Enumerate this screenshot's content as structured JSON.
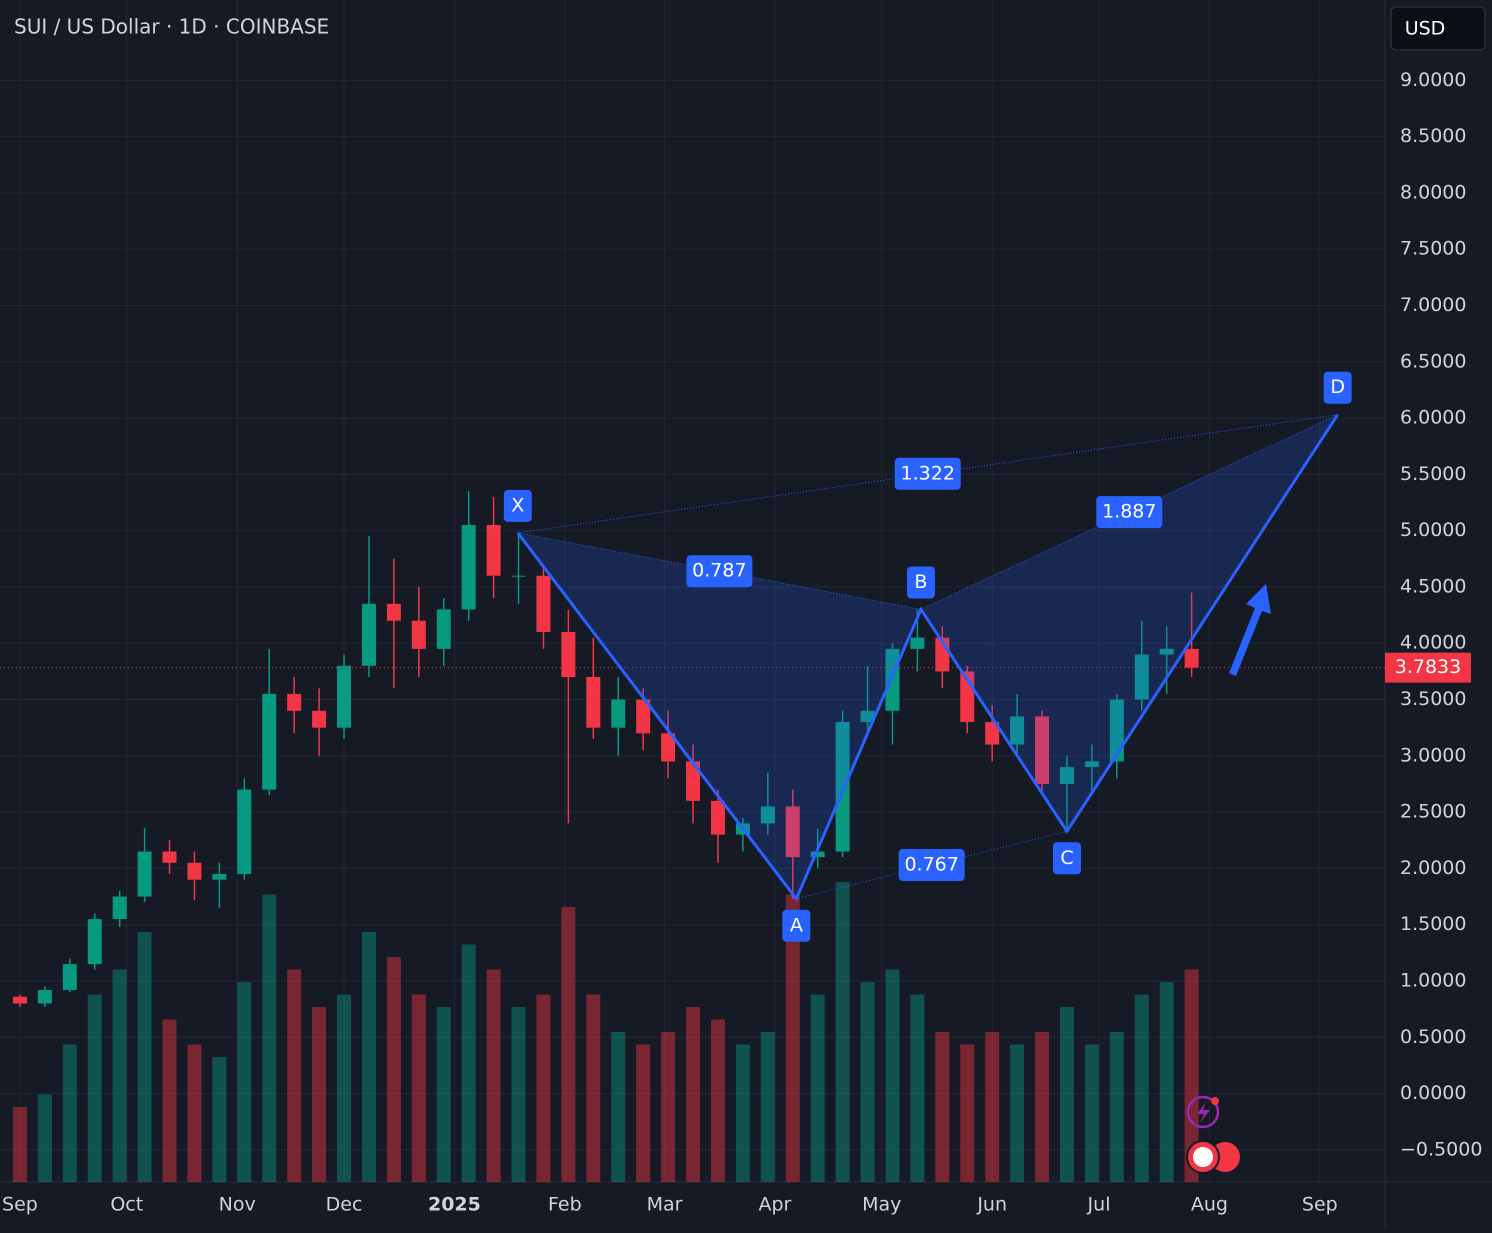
{
  "chart_data": {
    "type": "candlestick",
    "title": "SUI / US Dollar · 1D · COINBASE",
    "currency": "USD",
    "x": [
      0,
      7,
      14,
      21,
      28,
      35,
      42,
      49,
      56,
      63,
      70,
      77,
      84,
      91,
      98,
      105,
      112,
      119,
      126,
      133,
      140,
      147,
      154,
      161,
      168,
      175,
      182,
      189,
      196,
      203,
      210,
      217,
      224,
      231,
      238,
      245,
      252,
      259,
      266,
      273,
      280,
      287,
      294,
      301,
      308,
      315,
      322,
      329
    ],
    "open": [
      0.86,
      0.8,
      0.92,
      1.15,
      1.55,
      1.75,
      2.15,
      2.05,
      1.9,
      1.95,
      2.7,
      3.55,
      3.4,
      3.25,
      3.8,
      4.35,
      4.2,
      3.95,
      4.3,
      5.05,
      4.6,
      4.6,
      4.1,
      3.7,
      3.25,
      3.5,
      3.2,
      2.95,
      2.6,
      2.3,
      2.4,
      2.55,
      2.1,
      2.15,
      3.3,
      3.4,
      3.95,
      4.05,
      3.75,
      3.3,
      3.1,
      3.35,
      2.75,
      2.9,
      2.95,
      3.5,
      3.9,
      3.95
    ],
    "high": [
      0.88,
      0.95,
      1.2,
      1.6,
      1.8,
      2.36,
      2.25,
      2.15,
      2.05,
      2.8,
      3.95,
      3.7,
      3.6,
      3.9,
      4.95,
      4.75,
      4.5,
      4.4,
      5.35,
      5.3,
      4.98,
      4.7,
      4.3,
      4.05,
      3.7,
      3.6,
      3.4,
      3.1,
      2.7,
      2.45,
      2.85,
      2.7,
      2.35,
      3.4,
      3.8,
      4.0,
      4.3,
      4.15,
      3.8,
      3.45,
      3.55,
      3.4,
      3.0,
      3.1,
      3.55,
      4.2,
      4.15,
      4.45
    ],
    "low": [
      0.77,
      0.77,
      0.9,
      1.1,
      1.48,
      1.7,
      1.95,
      1.72,
      1.65,
      1.9,
      2.65,
      3.2,
      3.0,
      3.15,
      3.7,
      3.6,
      3.7,
      3.8,
      4.2,
      4.4,
      4.35,
      3.95,
      2.4,
      3.15,
      3.0,
      3.05,
      2.8,
      2.4,
      2.05,
      2.15,
      2.3,
      1.73,
      2.0,
      2.1,
      3.2,
      3.1,
      3.75,
      3.6,
      3.2,
      2.95,
      3.0,
      2.65,
      2.33,
      2.65,
      2.8,
      3.4,
      3.55,
      3.7
    ],
    "close": [
      0.8,
      0.92,
      1.15,
      1.55,
      1.75,
      2.15,
      2.05,
      1.9,
      1.95,
      2.7,
      3.55,
      3.4,
      3.25,
      3.8,
      4.35,
      4.2,
      3.95,
      4.3,
      5.05,
      4.6,
      4.6,
      4.1,
      3.7,
      3.25,
      3.5,
      3.2,
      2.95,
      2.6,
      2.3,
      2.4,
      2.55,
      2.1,
      2.15,
      3.3,
      3.4,
      3.95,
      4.05,
      3.75,
      3.3,
      3.1,
      3.35,
      2.75,
      2.9,
      2.95,
      3.5,
      3.9,
      3.95,
      3.7833
    ],
    "volume": [
      60,
      70,
      110,
      150,
      170,
      200,
      130,
      110,
      100,
      160,
      230,
      170,
      140,
      150,
      200,
      180,
      150,
      140,
      190,
      170,
      140,
      150,
      220,
      150,
      120,
      110,
      120,
      140,
      130,
      110,
      120,
      230,
      150,
      240,
      160,
      170,
      150,
      120,
      110,
      120,
      110,
      120,
      140,
      110,
      120,
      150,
      160,
      170
    ],
    "up_color": "#089981",
    "down_color": "#f23645",
    "xlim": [
      -5.6,
      383.3
    ],
    "xticks": [
      {
        "value": 0,
        "label": "Sep"
      },
      {
        "value": 30,
        "label": "Oct"
      },
      {
        "value": 61,
        "label": "Nov"
      },
      {
        "value": 91,
        "label": "Dec"
      },
      {
        "value": 122,
        "label": "2025"
      },
      {
        "value": 153,
        "label": "Feb"
      },
      {
        "value": 181,
        "label": "Mar"
      },
      {
        "value": 212,
        "label": "Apr"
      },
      {
        "value": 242,
        "label": "May"
      },
      {
        "value": 273,
        "label": "Jun"
      },
      {
        "value": 303,
        "label": "Jul"
      },
      {
        "value": 334,
        "label": "Aug"
      },
      {
        "value": 365,
        "label": "Sep"
      }
    ],
    "ylim": [
      -0.7855,
      9.7136
    ],
    "yticks": [
      {
        "value": 9,
        "label": "9.0000"
      },
      {
        "value": 8.5,
        "label": "8.5000"
      },
      {
        "value": 8,
        "label": "8.0000"
      },
      {
        "value": 7.5,
        "label": "7.5000"
      },
      {
        "value": 7,
        "label": "7.0000"
      },
      {
        "value": 6.5,
        "label": "6.5000"
      },
      {
        "value": 6,
        "label": "6.0000"
      },
      {
        "value": 5.5,
        "label": "5.5000"
      },
      {
        "value": 5,
        "label": "5.0000"
      },
      {
        "value": 4.5,
        "label": "4.5000"
      },
      {
        "value": 4,
        "label": "4.0000"
      },
      {
        "value": 3.5,
        "label": "3.5000"
      },
      {
        "value": 3,
        "label": "3.0000"
      },
      {
        "value": 2.5,
        "label": "2.5000"
      },
      {
        "value": 2,
        "label": "2.0000"
      },
      {
        "value": 1.5,
        "label": "1.5000"
      },
      {
        "value": 1,
        "label": "1.0000"
      },
      {
        "value": 0.5,
        "label": "0.5000"
      },
      {
        "value": 0,
        "label": "0.0000"
      },
      {
        "value": -0.5,
        "label": "−0.5000"
      }
    ],
    "grid": true,
    "last_price": 3.7833,
    "pattern": {
      "labels": [
        "X",
        "A",
        "B",
        "C",
        "D"
      ],
      "x": [
        139.8,
        218,
        253,
        294,
        370
      ],
      "y": [
        4.98,
        1.73,
        4.3,
        2.33,
        6.03
      ],
      "color": "#2962ff",
      "ratios": [
        0.787,
        1.322,
        1.887,
        0.767
      ]
    }
  }
}
